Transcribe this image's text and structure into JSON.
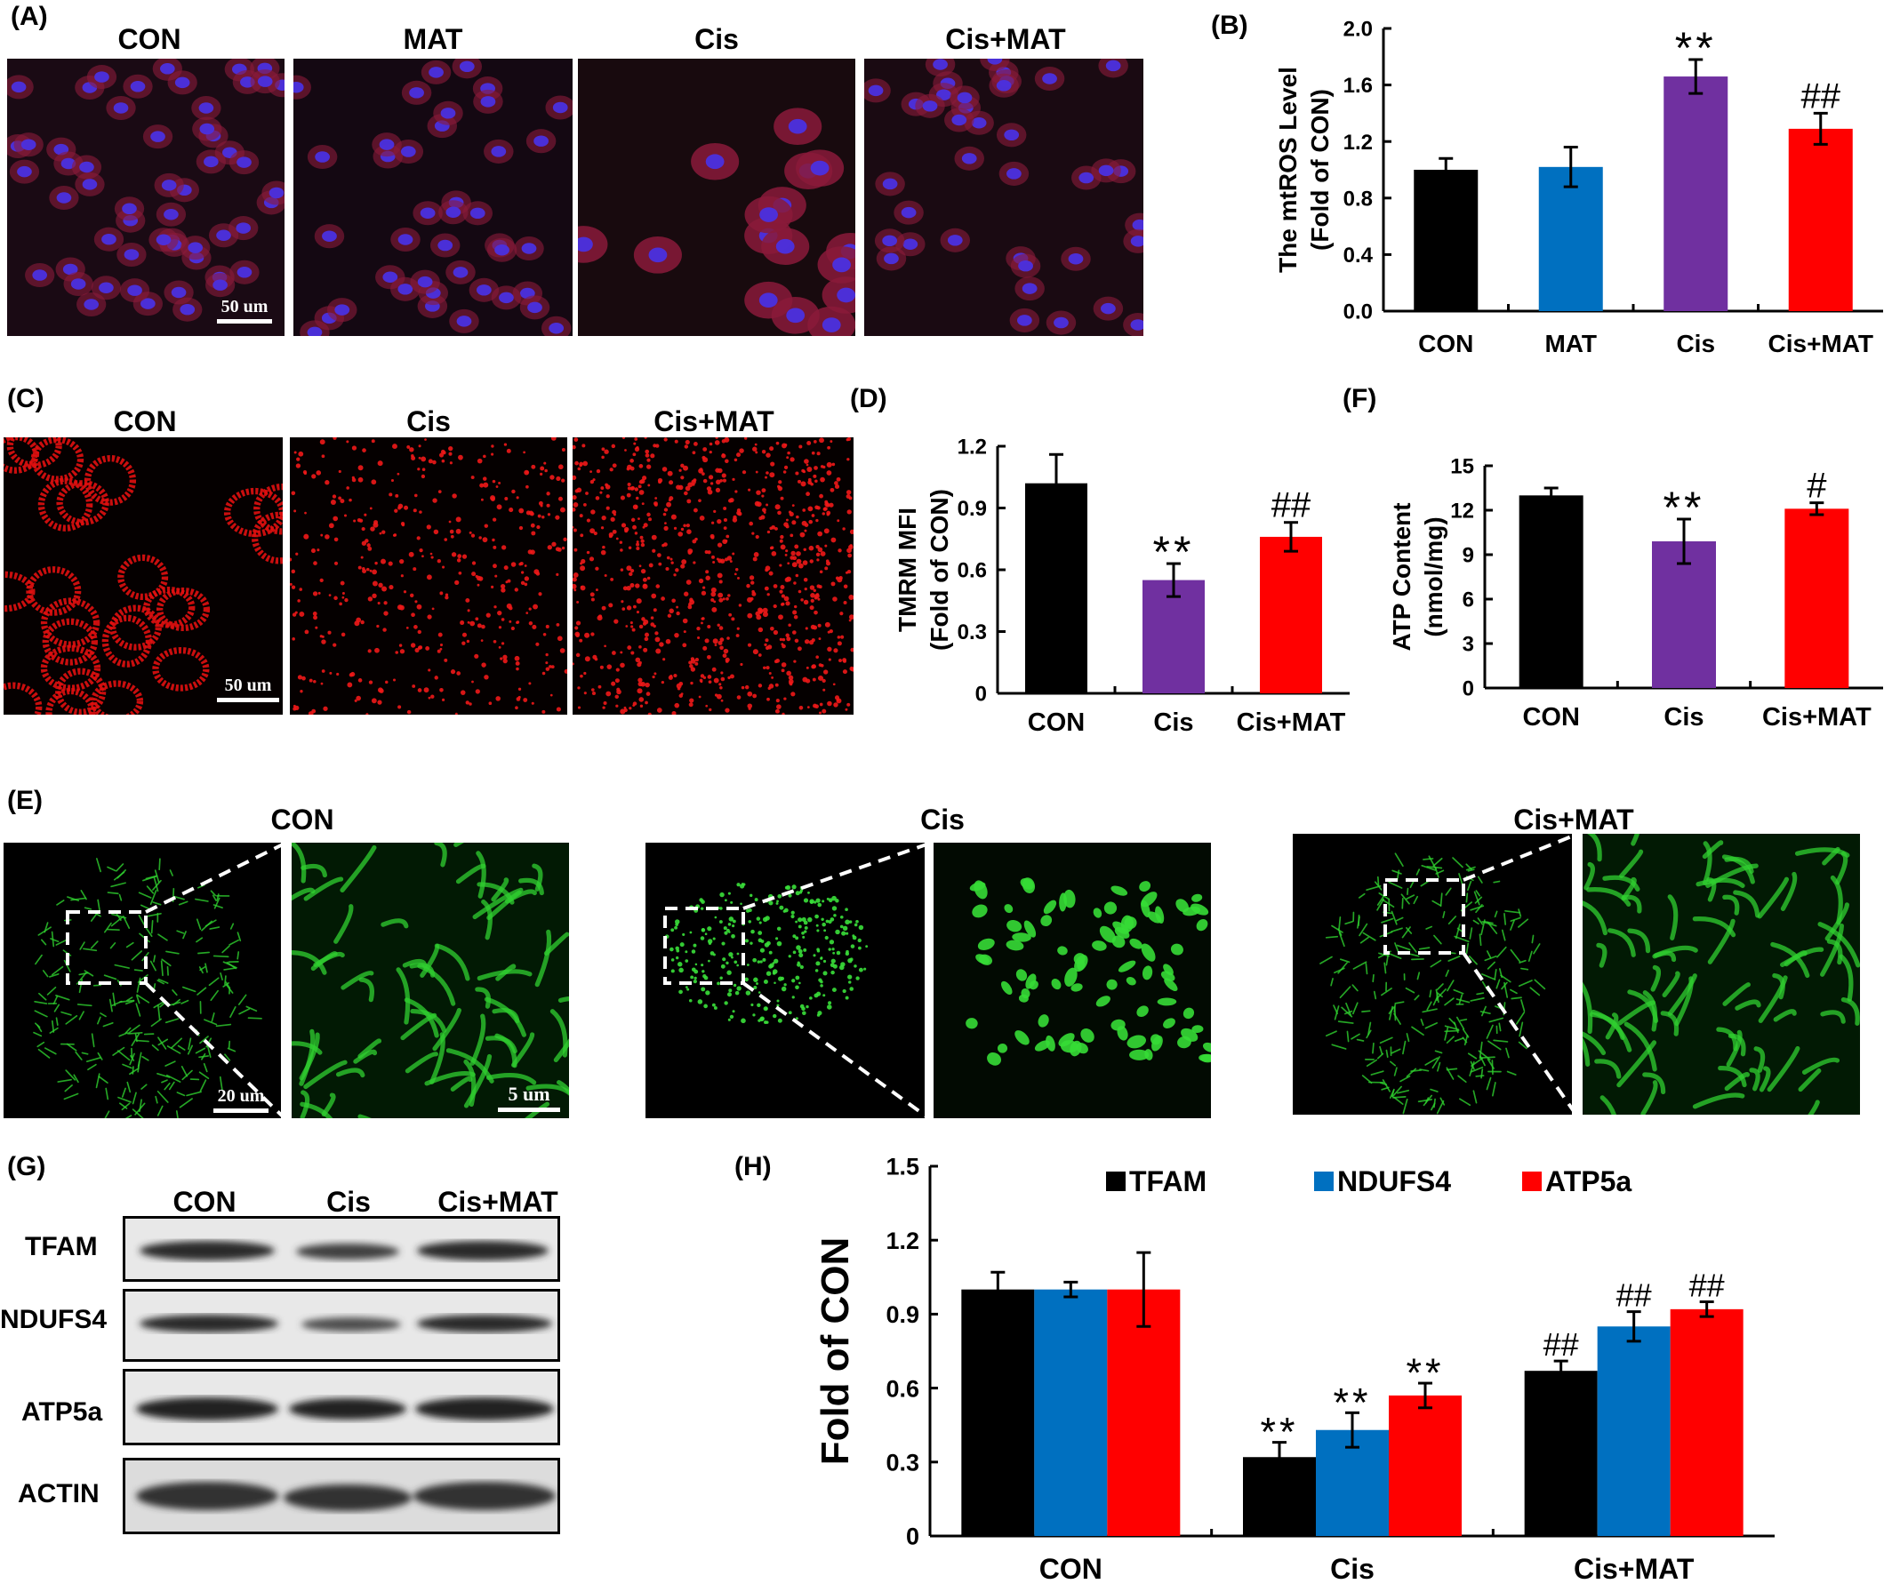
{
  "panels": {
    "A": {
      "label": "(A)",
      "groups": [
        "CON",
        "MAT",
        "Cis",
        "Cis+MAT"
      ],
      "scale": "50 um"
    },
    "B": {
      "label": "(B)"
    },
    "C": {
      "label": "(C)",
      "groups": [
        "CON",
        "Cis",
        "Cis+MAT"
      ],
      "scale": "50 um"
    },
    "D": {
      "label": "(D)"
    },
    "F": {
      "label": "(F)"
    },
    "E": {
      "label": "(E)",
      "groups": [
        "CON",
        "Cis",
        "Cis+MAT"
      ],
      "scale_overview": "20 um",
      "scale_zoom": "5 um"
    },
    "G": {
      "label": "(G)",
      "groups": [
        "CON",
        "Cis",
        "Cis+MAT"
      ],
      "proteins": [
        "TFAM",
        "NDUFS4",
        "ATP5a",
        "ACTIN"
      ]
    },
    "H": {
      "label": "(H)"
    }
  },
  "colors": {
    "black": "#000000",
    "blue": "#0070C0",
    "purple": "#7030A0",
    "red": "#FF0000"
  },
  "chart_data": [
    {
      "id": "B",
      "type": "bar",
      "categories": [
        "CON",
        "MAT",
        "Cis",
        "Cis+MAT"
      ],
      "values": [
        1.0,
        1.02,
        1.66,
        1.29
      ],
      "errors": [
        0.08,
        0.14,
        0.12,
        0.11
      ],
      "colors": [
        "#000000",
        "#0070C0",
        "#7030A0",
        "#FF0000"
      ],
      "annotations": [
        "",
        "",
        "**",
        "##"
      ],
      "ylabel_lines": [
        "The mtROS Level",
        "(Fold of CON)"
      ],
      "ylim": [
        0,
        2.0
      ],
      "yticks": [
        "0.0",
        "0.4",
        "0.8",
        "1.2",
        "1.6",
        "2.0"
      ]
    },
    {
      "id": "D",
      "type": "bar",
      "categories": [
        "CON",
        "Cis",
        "Cis+MAT"
      ],
      "values": [
        1.02,
        0.55,
        0.76
      ],
      "errors": [
        0.14,
        0.08,
        0.07
      ],
      "colors": [
        "#000000",
        "#7030A0",
        "#FF0000"
      ],
      "annotations": [
        "",
        "**",
        "##"
      ],
      "ylabel_lines": [
        "TMRM MFI",
        "(Fold of CON)"
      ],
      "ylim": [
        0,
        1.2
      ],
      "yticks": [
        "0",
        "0.3",
        "0.6",
        "0.9",
        "1.2"
      ]
    },
    {
      "id": "F",
      "type": "bar",
      "categories": [
        "CON",
        "Cis",
        "Cis+MAT"
      ],
      "values": [
        13.0,
        9.9,
        12.1
      ],
      "errors": [
        0.5,
        1.5,
        0.4
      ],
      "colors": [
        "#000000",
        "#7030A0",
        "#FF0000"
      ],
      "annotations": [
        "",
        "**",
        "#"
      ],
      "ylabel_lines": [
        "ATP Content",
        "(nmol/mg)"
      ],
      "ylim": [
        0,
        15
      ],
      "yticks": [
        "0",
        "3",
        "6",
        "9",
        "12",
        "15"
      ]
    },
    {
      "id": "H",
      "type": "bar",
      "categories": [
        "CON",
        "Cis",
        "Cis+MAT"
      ],
      "series": [
        {
          "name": "TFAM",
          "color": "#000000",
          "values": [
            1.0,
            0.32,
            0.67
          ],
          "errors": [
            0.07,
            0.06,
            0.04
          ],
          "annotations": [
            "",
            "**",
            "##"
          ]
        },
        {
          "name": "NDUFS4",
          "color": "#0070C0",
          "values": [
            1.0,
            0.43,
            0.85
          ],
          "errors": [
            0.03,
            0.07,
            0.06
          ],
          "annotations": [
            "",
            "**",
            "##"
          ]
        },
        {
          "name": "ATP5a",
          "color": "#FF0000",
          "values": [
            1.0,
            0.57,
            0.92
          ],
          "errors": [
            0.15,
            0.05,
            0.03
          ],
          "annotations": [
            "",
            "**",
            "##"
          ]
        }
      ],
      "ylabel": "Fold of CON",
      "ylim": [
        0,
        1.5
      ],
      "yticks": [
        "0",
        "0.3",
        "0.6",
        "0.9",
        "1.2",
        "1.5"
      ],
      "legend_position": "top"
    }
  ]
}
